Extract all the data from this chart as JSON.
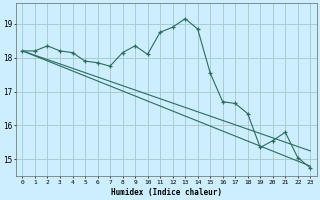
{
  "xlabel": "Humidex (Indice chaleur)",
  "bg_color": "#cceeff",
  "grid_color": "#aacccc",
  "line_color": "#2d6b5e",
  "x_ticks": [
    0,
    1,
    2,
    3,
    4,
    5,
    6,
    7,
    8,
    9,
    10,
    11,
    12,
    13,
    14,
    15,
    16,
    17,
    18,
    19,
    20,
    21,
    22,
    23
  ],
  "y_ticks": [
    15,
    16,
    17,
    18,
    19
  ],
  "xlim": [
    -0.5,
    23.5
  ],
  "ylim": [
    14.5,
    19.6
  ],
  "series1_x": [
    0,
    1,
    2,
    3,
    4,
    5,
    6,
    7,
    8,
    9,
    10,
    11,
    12,
    13,
    14,
    15,
    16,
    17,
    18,
    19,
    20,
    21,
    22,
    23
  ],
  "series1_y": [
    18.2,
    18.2,
    18.35,
    18.2,
    18.15,
    17.9,
    17.85,
    17.75,
    18.15,
    18.35,
    18.1,
    18.75,
    18.9,
    19.15,
    18.85,
    17.55,
    16.7,
    16.65,
    16.35,
    15.35,
    15.55,
    15.8,
    15.05,
    14.75
  ],
  "series2_x": [
    0,
    23
  ],
  "series2_y": [
    18.2,
    15.25
  ],
  "series3_x": [
    0,
    23
  ],
  "series3_y": [
    18.2,
    14.8
  ]
}
